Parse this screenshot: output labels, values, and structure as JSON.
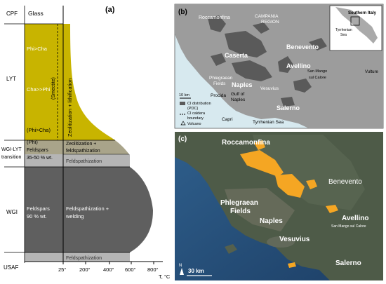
{
  "panel_a": {
    "label": "(a)",
    "glass_label": "Glass",
    "zones": {
      "cpf": "CPF",
      "lyt": "LYT",
      "wgi_lyt_1": "WGI-LYT",
      "wgi_lyt_2": "transition",
      "wgi": "WGI",
      "usaf": "USAF"
    },
    "texts": {
      "phi_cha_1": "Phi>Cha",
      "cha_phi": "Cha>>Phi",
      "phi_cha_2": "(Phi>Cha)",
      "phi": "(Phi)",
      "feldspars_1a": "Feldspars",
      "feldspars_1b": "35-50 % wt.",
      "feldspars_2a": "Feldspars",
      "feldspars_2b": "90 % wt.",
      "smectite": "(Smectite)",
      "zeolitization_lithification": "Zeolitization + lithification",
      "zeolitization_1": "Zeolitization +",
      "zeolitization_2": "feldspathization",
      "feldspathization_top": "Feldspathization",
      "feldspathization_welding_1": "Feldspathization +",
      "feldspathization_welding_2": "welding",
      "feldspathization_bottom": "Feldspathization"
    },
    "x_ticks": [
      "25°",
      "200°",
      "400°",
      "600°",
      "800°"
    ],
    "x_unit": "T, °C",
    "colors": {
      "yellow": "#c8b400",
      "dark": "#5f5f5f",
      "light": "#b5b5b5"
    }
  },
  "panel_b": {
    "label": "(b)",
    "places": {
      "roccamonfina": "Roccamonfina",
      "campania_1": "CAMPANIA",
      "campania_2": "REGION",
      "caserta": "Caserta",
      "benevento": "Benevento",
      "avellino": "Avellino",
      "san_mango": "San Mango",
      "sul_calore": "sul Calore",
      "vulture": "Vulture",
      "phlegraean_1": "Phlegraean",
      "phlegraean_2": "Fields",
      "naples": "Naples",
      "vesuvius": "Vesuvius",
      "procida": "Procida",
      "gulf_1": "Gulf of",
      "gulf_2": "Naples",
      "salerno": "Salerno",
      "capri": "Capri",
      "tyrrhenian": "Tyrrhenian Sea"
    },
    "scale": "10 km",
    "legend": {
      "ci_1": "CI distribution",
      "ci_2": "(PDC)",
      "caldera_1": "CI caldera",
      "caldera_2": "boundary",
      "volcano": "Volcano"
    },
    "inset": {
      "southern_italy": "Southern Italy",
      "tyrrhenian_1": "Tyrrhenian",
      "tyrrhenian_2": "Sea"
    }
  },
  "panel_c": {
    "label": "(c)",
    "places": {
      "roccamonfina": "Roccamonfina",
      "benevento": "Benevento",
      "phlegraean_1": "Phlegraean",
      "phlegraean_2": "Fields",
      "naples": "Naples",
      "avellino": "Avellino",
      "san_mango": "San Mango sul Calore",
      "vesuvius": "Vesuvius",
      "salerno": "Salerno"
    },
    "scale": "30 km",
    "north": "N"
  }
}
